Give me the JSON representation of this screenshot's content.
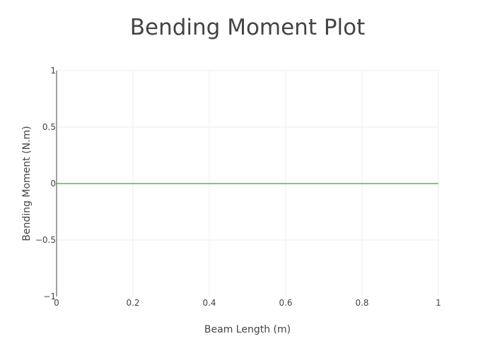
{
  "chart_data": {
    "type": "line",
    "title": "Bending Moment Plot",
    "xlabel": "Beam Length (m)",
    "ylabel": "Bending Moment (N.m)",
    "xlim": [
      0,
      1
    ],
    "ylim": [
      -1,
      1
    ],
    "x_ticks": [
      0,
      0.2,
      0.4,
      0.6,
      0.8,
      1
    ],
    "x_tick_labels": [
      "0",
      "0.2",
      "0.4",
      "0.6",
      "0.8",
      "1"
    ],
    "y_ticks": [
      1,
      0.5,
      0,
      -0.5,
      -1
    ],
    "y_tick_labels": [
      "1",
      "0.5",
      "0",
      "−0.5",
      "−1"
    ],
    "grid": true,
    "series": [
      {
        "color": "#8fbc8f",
        "x": [
          0,
          0.2,
          0.4,
          0.6,
          0.8,
          1
        ],
        "y": [
          0,
          0,
          0,
          0,
          0,
          0
        ]
      }
    ]
  }
}
